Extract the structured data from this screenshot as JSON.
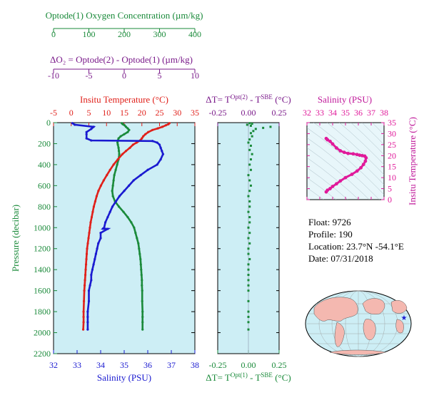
{
  "colors": {
    "oxygen": "#1a8a3a",
    "delta_o2": "#7a1a8a",
    "temperature": "#e0201a",
    "salinity": "#1a1ad0",
    "ts_plot": "#e01a9a",
    "panel_bg": "#cdeef5",
    "land": "#f4b8b0"
  },
  "info": {
    "float": "Float:  9726",
    "profile": "Profile:  190",
    "location": "Location:  23.7°N  -54.1°E",
    "date": "Date:  07/31/2018"
  },
  "chart_data": [
    {
      "type": "line",
      "panel": "main-profile",
      "ylabel": "Pressure (decibar)",
      "ylim": [
        2200,
        0
      ],
      "yticks": [
        "0",
        "200",
        "400",
        "600",
        "800",
        "1000",
        "1200",
        "1400",
        "1600",
        "1800",
        "2000",
        "2200"
      ],
      "axes": {
        "oxygen": {
          "label": "Optode(1) Oxygen Concentration (µm/kg)",
          "range": [
            0,
            400
          ],
          "ticks": [
            "0",
            "100",
            "200",
            "300",
            "400"
          ]
        },
        "delta_o2": {
          "label": "ΔO₂ = Optode(2) - Optode(1)    (µm/kg)",
          "range": [
            -10,
            10
          ],
          "ticks": [
            "-10",
            "-5",
            "0",
            "5",
            "10"
          ]
        },
        "temperature": {
          "label": "Insitu Temperature (°C)",
          "range": [
            -5,
            35
          ],
          "ticks": [
            "-5",
            "0",
            "5",
            "10",
            "15",
            "20",
            "25",
            "30",
            "35"
          ]
        },
        "salinity": {
          "label": "Salinity (PSU)",
          "range": [
            32,
            38
          ],
          "ticks": [
            "32",
            "33",
            "34",
            "35",
            "36",
            "37",
            "38"
          ]
        }
      },
      "series": [
        {
          "key": "oxygen",
          "axis": "oxygen",
          "x": [
            193,
            196,
            201,
            205,
            210,
            214,
            210,
            200,
            190,
            184,
            182,
            181,
            182,
            184,
            185,
            186,
            184,
            180,
            176,
            172,
            170,
            168,
            166,
            168,
            174,
            185,
            198,
            210,
            220,
            228,
            232,
            236,
            240,
            242,
            244,
            246,
            247,
            248,
            249,
            250,
            250,
            251,
            251,
            252,
            252,
            252,
            252
          ],
          "y": [
            5,
            15,
            25,
            40,
            55,
            70,
            90,
            110,
            130,
            150,
            170,
            190,
            210,
            240,
            270,
            300,
            350,
            400,
            450,
            500,
            550,
            600,
            650,
            700,
            750,
            800,
            850,
            900,
            950,
            1000,
            1050,
            1100,
            1150,
            1200,
            1250,
            1300,
            1350,
            1400,
            1450,
            1500,
            1550,
            1600,
            1700,
            1800,
            1850,
            1900,
            1970
          ]
        },
        {
          "key": "temperature",
          "axis": "temperature",
          "x": [
            27.8,
            27.5,
            26.8,
            25.8,
            24.5,
            23,
            21.8,
            21,
            20.4,
            20,
            19.5,
            18.5,
            17.5,
            16.6,
            15.5,
            14.5,
            13.2,
            12,
            11,
            10.1,
            9.2,
            8.4,
            7.7,
            7.2,
            6.8,
            6.4,
            6.1,
            5.8,
            5.5,
            5.3,
            5.1,
            4.9,
            4.7,
            4.5,
            4.4,
            4.3,
            4.2,
            4.1,
            4.0,
            3.9,
            3.8,
            3.7,
            3.6,
            3.5,
            3.5,
            3.5,
            3.4
          ],
          "y": [
            5,
            15,
            25,
            40,
            55,
            70,
            90,
            110,
            130,
            150,
            170,
            190,
            210,
            240,
            270,
            300,
            350,
            400,
            450,
            500,
            550,
            600,
            650,
            700,
            750,
            800,
            850,
            900,
            950,
            1000,
            1050,
            1100,
            1150,
            1200,
            1250,
            1300,
            1350,
            1400,
            1450,
            1500,
            1550,
            1600,
            1700,
            1800,
            1850,
            1900,
            1970
          ]
        },
        {
          "key": "salinity",
          "axis": "salinity",
          "x": [
            32.8,
            32.9,
            33.7,
            33.6,
            33.4,
            33.4,
            33.4,
            33.6,
            36.2,
            36.4,
            36.5,
            36.55,
            36.6,
            36.65,
            36.55,
            36.4,
            36.0,
            35.7,
            35.4,
            35.2,
            35.0,
            34.8,
            34.65,
            34.5,
            34.4,
            34.3,
            34.2,
            34.15,
            34.1,
            34.3,
            34.0,
            34.0,
            33.9,
            33.85,
            33.8,
            33.75,
            33.7,
            33.65,
            33.6,
            33.6,
            33.55,
            33.5,
            33.5,
            33.45,
            33.45,
            33.45,
            33.45
          ],
          "y": [
            5,
            20,
            40,
            60,
            90,
            110,
            150,
            170,
            175,
            190,
            210,
            240,
            270,
            300,
            350,
            400,
            450,
            500,
            550,
            600,
            650,
            700,
            750,
            800,
            850,
            900,
            950,
            1000,
            1010,
            1012,
            1050,
            1100,
            1150,
            1200,
            1250,
            1300,
            1350,
            1400,
            1450,
            1500,
            1550,
            1600,
            1700,
            1800,
            1850,
            1900,
            1970
          ]
        }
      ]
    },
    {
      "type": "scatter",
      "panel": "delta-t",
      "top_label": "ΔT= T^{Opt(2)} - T^{SBE} (°C)",
      "bottom_label": "ΔT= T^{Opt(1)} - T^{SBE} (°C)",
      "xlim": [
        -0.25,
        0.25
      ],
      "xticks": [
        "-0.25",
        "0.00",
        "0.25"
      ],
      "ylim": [
        2200,
        0
      ],
      "x": [
        0.01,
        0.03,
        -0.01,
        0.02,
        0.18,
        0.12,
        0.06,
        0.04,
        0.02,
        0.03,
        0.01,
        0.0,
        0.02,
        0.01,
        0.03,
        0.02,
        0.01,
        0.02,
        0.0,
        0.01,
        0.02,
        0.01,
        0.0,
        0.01,
        0.01,
        0.0,
        0.01,
        0.01,
        0.0,
        0.01,
        0.0,
        0.01,
        0.0,
        0.0,
        0.01,
        0.0,
        0.0,
        0.0,
        0.0,
        0.0,
        0.0,
        0.0,
        0.0,
        0.0,
        0.0,
        0.0
      ],
      "y": [
        5,
        10,
        20,
        30,
        40,
        50,
        60,
        80,
        100,
        130,
        160,
        190,
        220,
        260,
        300,
        350,
        400,
        450,
        500,
        550,
        600,
        650,
        700,
        750,
        800,
        850,
        900,
        950,
        1000,
        1050,
        1100,
        1150,
        1200,
        1250,
        1300,
        1350,
        1400,
        1450,
        1500,
        1550,
        1600,
        1700,
        1800,
        1850,
        1900,
        1970
      ]
    },
    {
      "type": "scatter",
      "panel": "ts-diagram",
      "title": "Salinity (PSU)",
      "xlim": [
        32,
        38
      ],
      "xticks": [
        "32",
        "33",
        "34",
        "35",
        "36",
        "37",
        "38"
      ],
      "ylabel": "Insitu Temperature (°C)",
      "ylim": [
        0,
        35
      ],
      "yticks": [
        "0",
        "5",
        "10",
        "15",
        "20",
        "25",
        "30",
        "35"
      ],
      "x": [
        33.5,
        33.6,
        33.8,
        34.0,
        34.3,
        34.6,
        34.9,
        35.2,
        35.6,
        35.9,
        36.1,
        36.3,
        36.5,
        36.6,
        36.55,
        36.4,
        36.2,
        35.9,
        35.5,
        35.0,
        34.6,
        34.3,
        34.0,
        33.8,
        33.6,
        33.5
      ],
      "y": [
        27.8,
        27.2,
        26.5,
        25.3,
        23.5,
        22.2,
        21.5,
        21.0,
        20.8,
        20.5,
        20.2,
        20.0,
        19.8,
        19.0,
        17.5,
        16.0,
        14.5,
        13.0,
        11.5,
        10.0,
        8.5,
        7.2,
        6.0,
        5.0,
        4.3,
        3.5
      ]
    }
  ]
}
